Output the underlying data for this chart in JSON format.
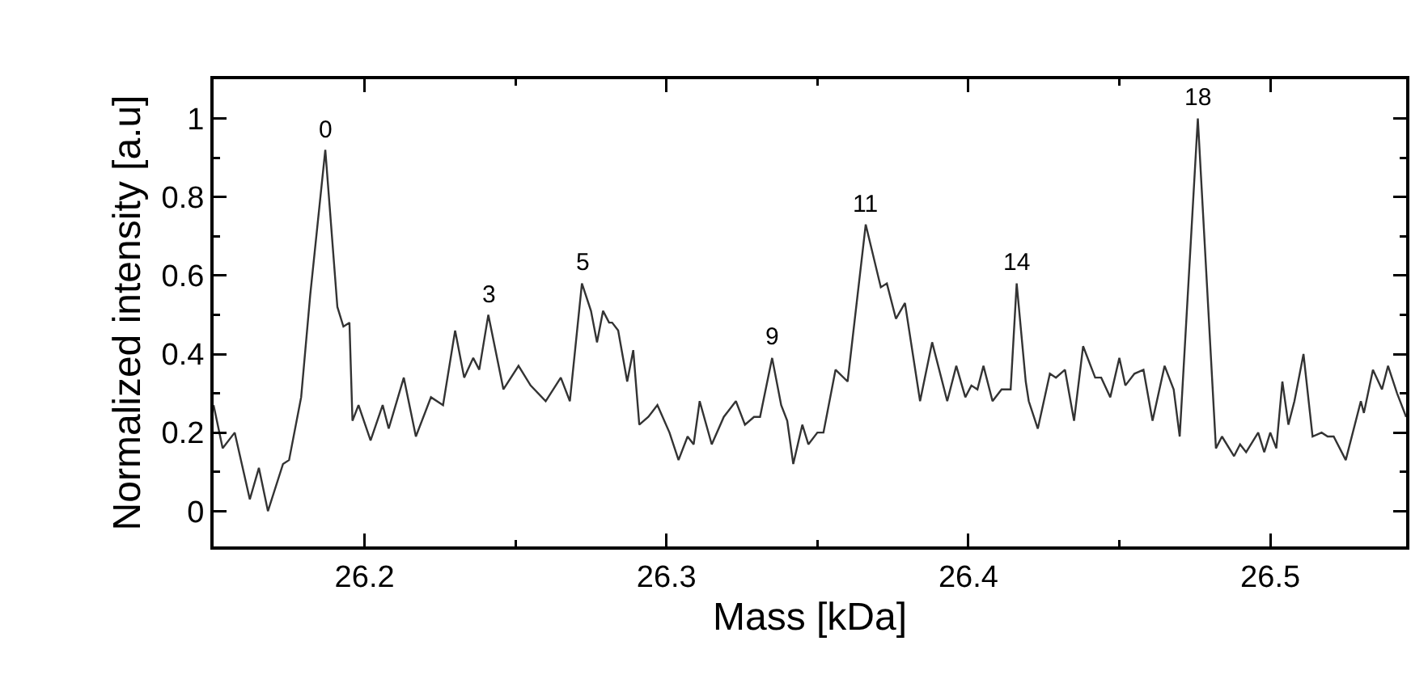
{
  "chart_data": {
    "type": "line",
    "xlabel": "Mass [kDa]",
    "ylabel": "Normalized intensity [a.u]",
    "xlim": [
      26.15,
      26.545
    ],
    "ylim": [
      -0.09,
      1.1
    ],
    "xticks": [
      26.2,
      {
        "value": 26.25,
        "label": null
      },
      26.3,
      {
        "value": 26.35,
        "label": null
      },
      26.4,
      {
        "value": 26.45,
        "label": null
      },
      26.5
    ],
    "yticks": [
      0,
      {
        "value": 0.1,
        "label": null
      },
      0.2,
      {
        "value": 0.3,
        "label": null
      },
      0.4,
      {
        "value": 0.5,
        "label": null
      },
      0.6,
      {
        "value": 0.7,
        "label": null
      },
      0.8,
      {
        "value": 0.9,
        "label": null
      },
      1
    ],
    "grid": false,
    "marker": "none",
    "line_style": "solid",
    "series": [
      {
        "color": "#333333",
        "x": [
          26.15,
          26.153,
          26.157,
          26.162,
          26.165,
          26.168,
          26.173,
          26.175,
          26.179,
          26.182,
          26.187,
          26.191,
          26.193,
          26.195,
          26.196,
          26.198,
          26.202,
          26.206,
          26.208,
          26.213,
          26.217,
          26.222,
          26.226,
          26.23,
          26.233,
          26.236,
          26.238,
          26.241,
          26.246,
          26.251,
          26.255,
          26.26,
          26.265,
          26.268,
          26.272,
          26.275,
          26.277,
          26.279,
          26.281,
          26.282,
          26.284,
          26.287,
          26.289,
          26.291,
          26.294,
          26.297,
          26.301,
          26.304,
          26.307,
          26.309,
          26.311,
          26.315,
          26.319,
          26.323,
          26.326,
          26.329,
          26.331,
          26.335,
          26.338,
          26.34,
          26.342,
          26.345,
          26.347,
          26.35,
          26.352,
          26.356,
          26.36,
          26.366,
          26.371,
          26.373,
          26.376,
          26.379,
          26.384,
          26.388,
          26.393,
          26.396,
          26.399,
          26.401,
          26.403,
          26.405,
          26.408,
          26.411,
          26.414,
          26.416,
          26.419,
          26.42,
          26.423,
          26.427,
          26.429,
          26.432,
          26.435,
          26.438,
          26.442,
          26.444,
          26.447,
          26.45,
          26.452,
          26.455,
          26.458,
          26.461,
          26.465,
          26.468,
          26.47,
          26.476,
          26.482,
          26.484,
          26.488,
          26.49,
          26.492,
          26.496,
          26.498,
          26.5,
          26.502,
          26.504,
          26.506,
          26.508,
          26.511,
          26.514,
          26.517,
          26.519,
          26.521,
          26.525,
          26.53,
          26.531,
          26.534,
          26.537,
          26.539,
          26.542,
          26.545
        ],
        "values": [
          0.27,
          0.16,
          0.2,
          0.03,
          0.11,
          0.0,
          0.12,
          0.13,
          0.29,
          0.55,
          0.92,
          0.52,
          0.47,
          0.48,
          0.23,
          0.27,
          0.18,
          0.27,
          0.21,
          0.34,
          0.19,
          0.29,
          0.27,
          0.46,
          0.34,
          0.39,
          0.36,
          0.5,
          0.31,
          0.37,
          0.32,
          0.28,
          0.34,
          0.28,
          0.58,
          0.51,
          0.43,
          0.51,
          0.48,
          0.48,
          0.46,
          0.33,
          0.41,
          0.22,
          0.24,
          0.27,
          0.2,
          0.13,
          0.19,
          0.17,
          0.28,
          0.17,
          0.24,
          0.28,
          0.22,
          0.24,
          0.24,
          0.39,
          0.27,
          0.23,
          0.12,
          0.22,
          0.17,
          0.2,
          0.2,
          0.36,
          0.33,
          0.73,
          0.57,
          0.58,
          0.49,
          0.53,
          0.28,
          0.43,
          0.28,
          0.37,
          0.29,
          0.32,
          0.31,
          0.37,
          0.28,
          0.31,
          0.31,
          0.58,
          0.33,
          0.28,
          0.21,
          0.35,
          0.34,
          0.36,
          0.23,
          0.42,
          0.34,
          0.34,
          0.29,
          0.39,
          0.32,
          0.35,
          0.36,
          0.23,
          0.37,
          0.31,
          0.19,
          1.0,
          0.16,
          0.19,
          0.14,
          0.17,
          0.15,
          0.2,
          0.15,
          0.2,
          0.16,
          0.33,
          0.22,
          0.28,
          0.4,
          0.19,
          0.2,
          0.19,
          0.19,
          0.13,
          0.28,
          0.25,
          0.36,
          0.31,
          0.37,
          0.3,
          0.24
        ]
      }
    ],
    "annotations": [
      {
        "text": "0",
        "x": 26.187,
        "y": 0.92
      },
      {
        "text": "3",
        "x": 26.241,
        "y": 0.5
      },
      {
        "text": "5",
        "x": 26.272,
        "y": 0.58
      },
      {
        "text": "9",
        "x": 26.335,
        "y": 0.39
      },
      {
        "text": "11",
        "x": 26.366,
        "y": 0.73
      },
      {
        "text": "14",
        "x": 26.416,
        "y": 0.58
      },
      {
        "text": "18",
        "x": 26.476,
        "y": 1.0
      }
    ]
  }
}
